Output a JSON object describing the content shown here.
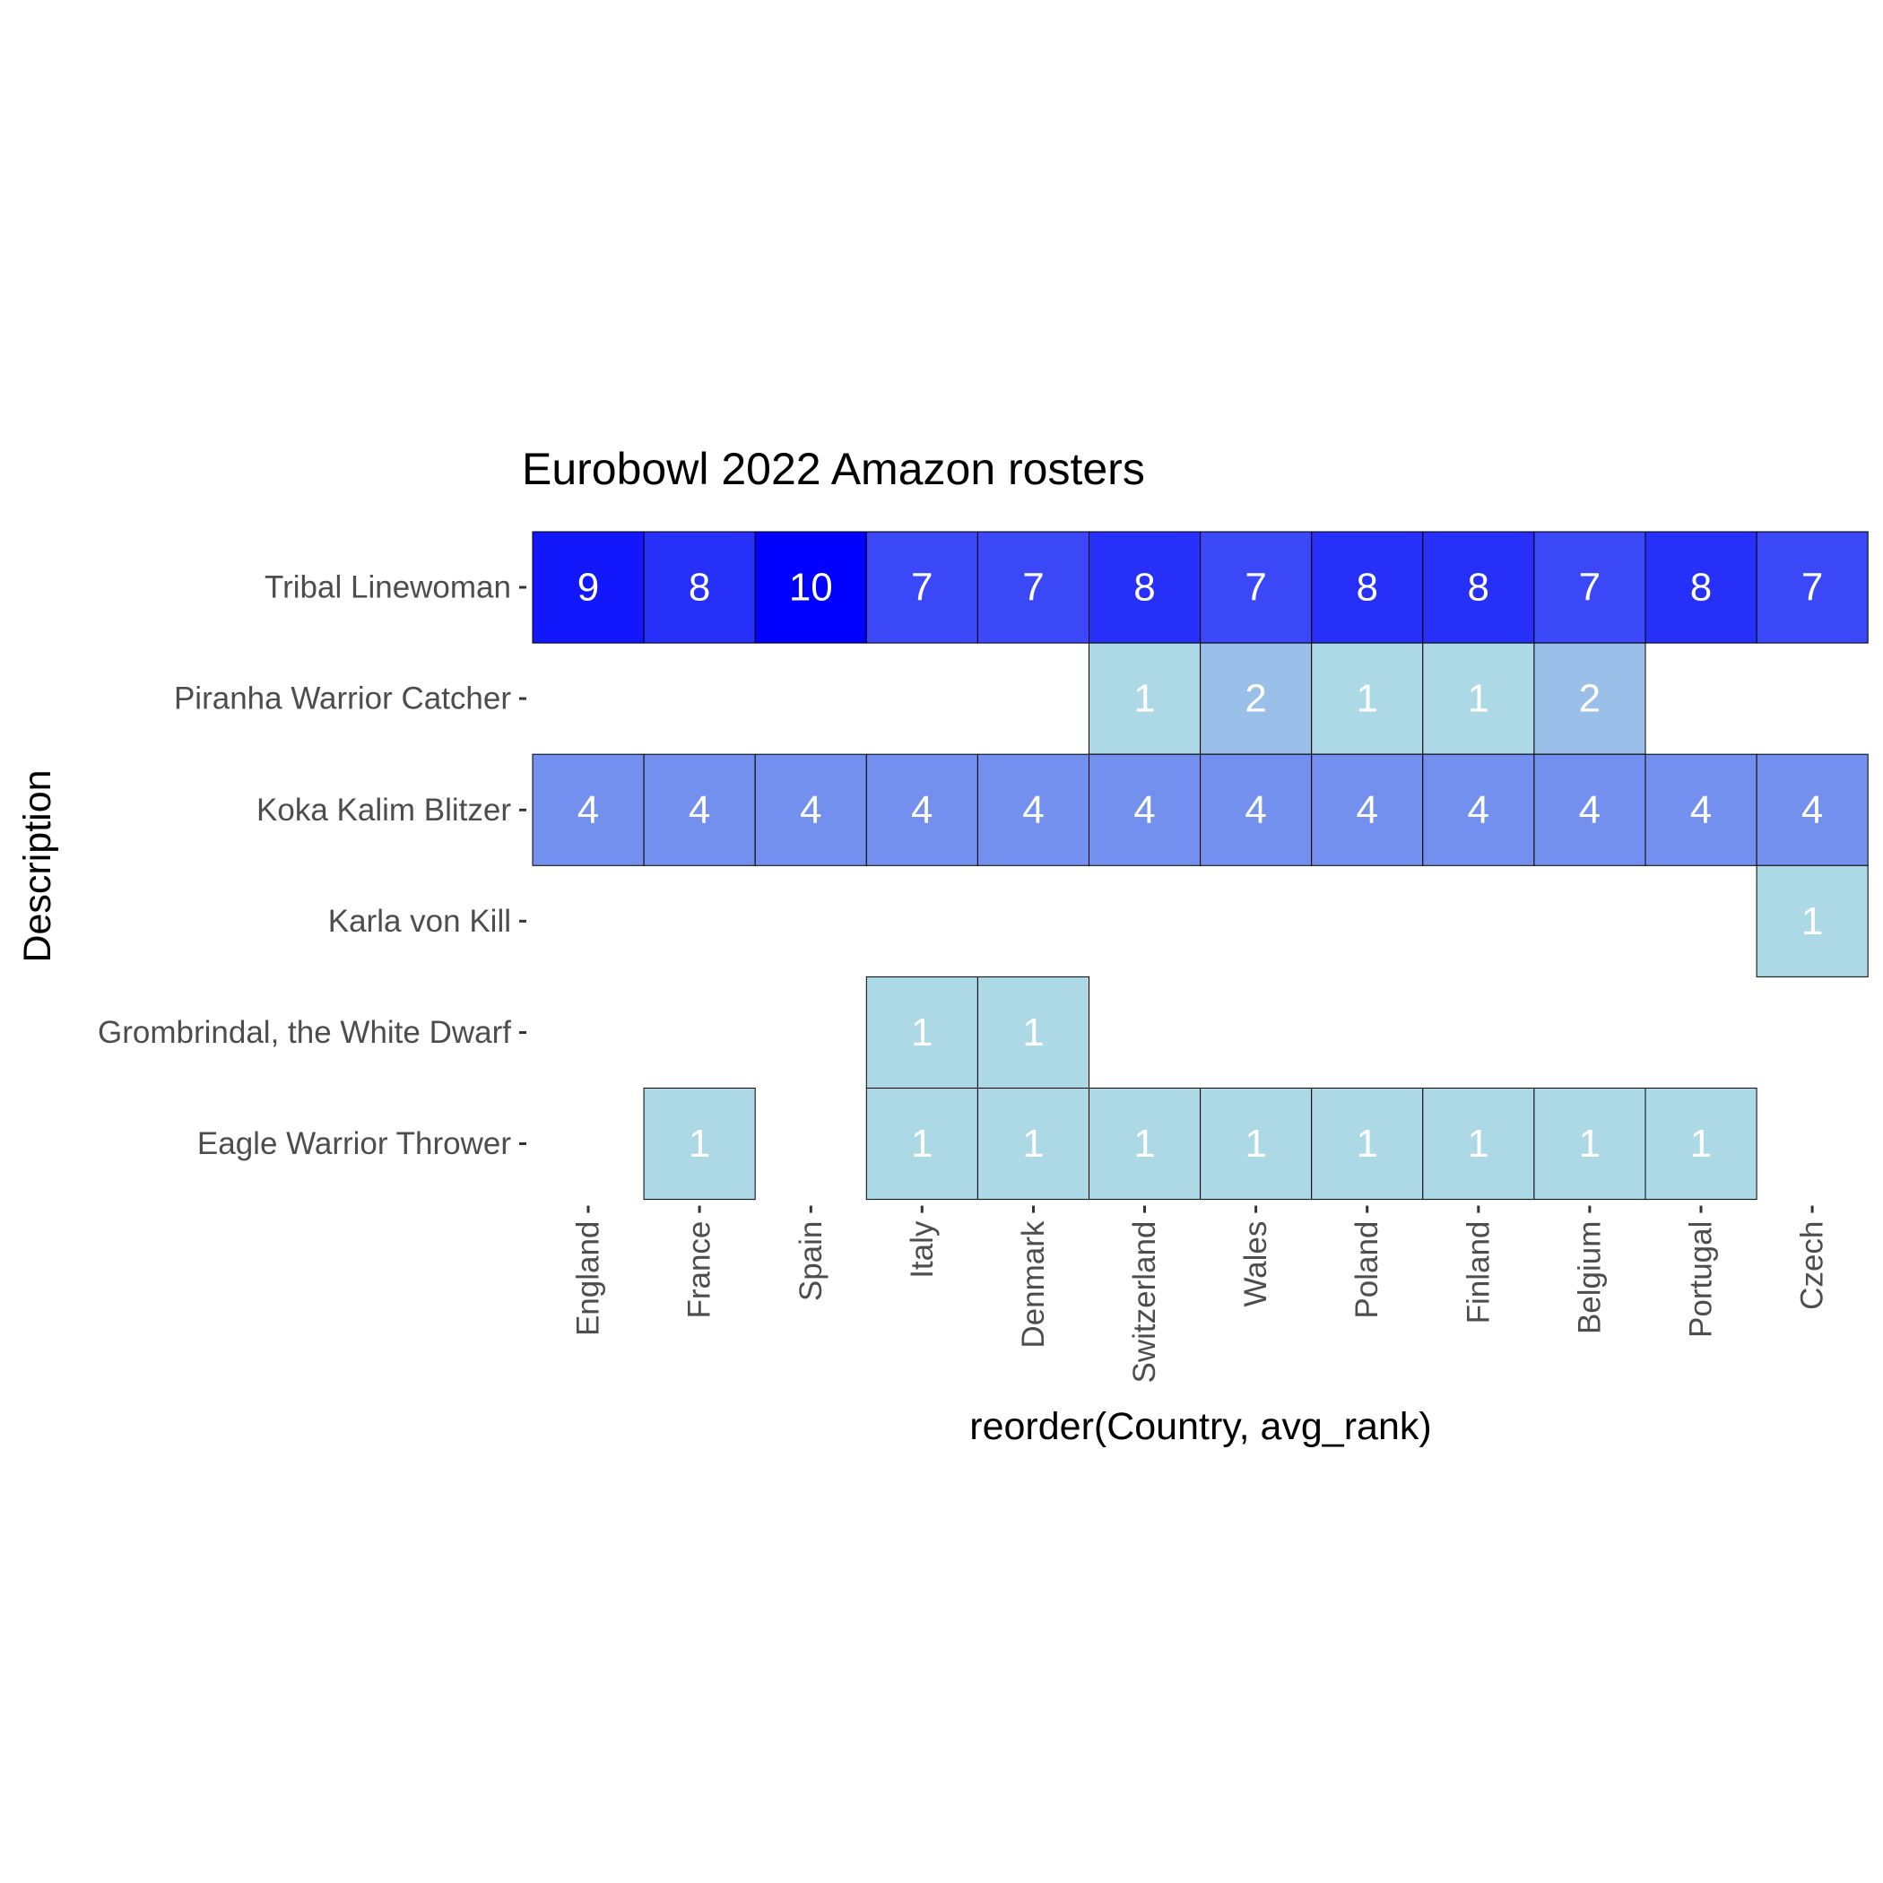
{
  "chart_data": {
    "type": "heatmap",
    "title": "Eurobowl 2022 Amazon rosters",
    "xlabel": "reorder(Country, avg_rank)",
    "ylabel": "Description",
    "x_categories": [
      "England",
      "France",
      "Spain",
      "Italy",
      "Denmark",
      "Switzerland",
      "Wales",
      "Poland",
      "Finland",
      "Belgium",
      "Portugal",
      "Czech"
    ],
    "y_categories": [
      "Eagle Warrior Thrower",
      "Grombrindal, the White Dwarf",
      "Karla von Kill",
      "Koka Kalim Blitzer",
      "Piranha Warrior Catcher",
      "Tribal Linewoman"
    ],
    "color_low": "#add8e6",
    "color_high": "#0000ff",
    "value_range": [
      1,
      10
    ],
    "legend": "none",
    "grid": false,
    "cells": [
      {
        "x": "England",
        "y": "Tribal Linewoman",
        "value": 9
      },
      {
        "x": "France",
        "y": "Tribal Linewoman",
        "value": 8
      },
      {
        "x": "Spain",
        "y": "Tribal Linewoman",
        "value": 10
      },
      {
        "x": "Italy",
        "y": "Tribal Linewoman",
        "value": 7
      },
      {
        "x": "Denmark",
        "y": "Tribal Linewoman",
        "value": 7
      },
      {
        "x": "Switzerland",
        "y": "Tribal Linewoman",
        "value": 8
      },
      {
        "x": "Wales",
        "y": "Tribal Linewoman",
        "value": 7
      },
      {
        "x": "Poland",
        "y": "Tribal Linewoman",
        "value": 8
      },
      {
        "x": "Finland",
        "y": "Tribal Linewoman",
        "value": 8
      },
      {
        "x": "Belgium",
        "y": "Tribal Linewoman",
        "value": 7
      },
      {
        "x": "Portugal",
        "y": "Tribal Linewoman",
        "value": 8
      },
      {
        "x": "Czech",
        "y": "Tribal Linewoman",
        "value": 7
      },
      {
        "x": "Switzerland",
        "y": "Piranha Warrior Catcher",
        "value": 1
      },
      {
        "x": "Wales",
        "y": "Piranha Warrior Catcher",
        "value": 2
      },
      {
        "x": "Poland",
        "y": "Piranha Warrior Catcher",
        "value": 1
      },
      {
        "x": "Finland",
        "y": "Piranha Warrior Catcher",
        "value": 1
      },
      {
        "x": "Belgium",
        "y": "Piranha Warrior Catcher",
        "value": 2
      },
      {
        "x": "England",
        "y": "Koka Kalim Blitzer",
        "value": 4
      },
      {
        "x": "France",
        "y": "Koka Kalim Blitzer",
        "value": 4
      },
      {
        "x": "Spain",
        "y": "Koka Kalim Blitzer",
        "value": 4
      },
      {
        "x": "Italy",
        "y": "Koka Kalim Blitzer",
        "value": 4
      },
      {
        "x": "Denmark",
        "y": "Koka Kalim Blitzer",
        "value": 4
      },
      {
        "x": "Switzerland",
        "y": "Koka Kalim Blitzer",
        "value": 4
      },
      {
        "x": "Wales",
        "y": "Koka Kalim Blitzer",
        "value": 4
      },
      {
        "x": "Poland",
        "y": "Koka Kalim Blitzer",
        "value": 4
      },
      {
        "x": "Finland",
        "y": "Koka Kalim Blitzer",
        "value": 4
      },
      {
        "x": "Belgium",
        "y": "Koka Kalim Blitzer",
        "value": 4
      },
      {
        "x": "Portugal",
        "y": "Koka Kalim Blitzer",
        "value": 4
      },
      {
        "x": "Czech",
        "y": "Koka Kalim Blitzer",
        "value": 4
      },
      {
        "x": "Czech",
        "y": "Karla von Kill",
        "value": 1
      },
      {
        "x": "Italy",
        "y": "Grombrindal, the White Dwarf",
        "value": 1
      },
      {
        "x": "Denmark",
        "y": "Grombrindal, the White Dwarf",
        "value": 1
      },
      {
        "x": "France",
        "y": "Eagle Warrior Thrower",
        "value": 1
      },
      {
        "x": "Italy",
        "y": "Eagle Warrior Thrower",
        "value": 1
      },
      {
        "x": "Denmark",
        "y": "Eagle Warrior Thrower",
        "value": 1
      },
      {
        "x": "Switzerland",
        "y": "Eagle Warrior Thrower",
        "value": 1
      },
      {
        "x": "Wales",
        "y": "Eagle Warrior Thrower",
        "value": 1
      },
      {
        "x": "Poland",
        "y": "Eagle Warrior Thrower",
        "value": 1
      },
      {
        "x": "Finland",
        "y": "Eagle Warrior Thrower",
        "value": 1
      },
      {
        "x": "Belgium",
        "y": "Eagle Warrior Thrower",
        "value": 1
      },
      {
        "x": "Portugal",
        "y": "Eagle Warrior Thrower",
        "value": 1
      }
    ]
  }
}
